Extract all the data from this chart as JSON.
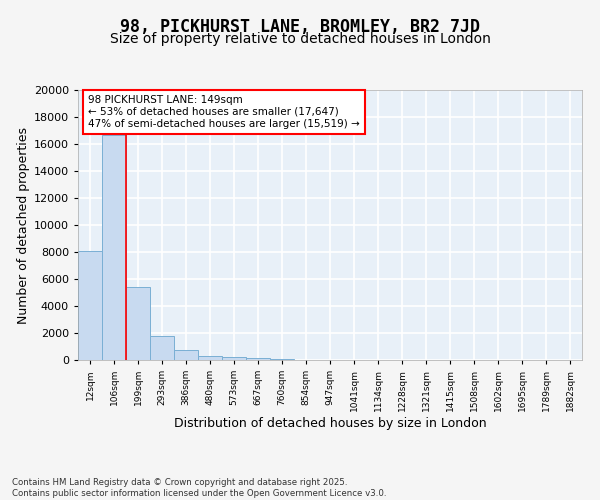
{
  "title": "98, PICKHURST LANE, BROMLEY, BR2 7JD",
  "subtitle": "Size of property relative to detached houses in London",
  "xlabel": "Distribution of detached houses by size in London",
  "ylabel": "Number of detached properties",
  "bins": [
    "12sqm",
    "106sqm",
    "199sqm",
    "293sqm",
    "386sqm",
    "480sqm",
    "573sqm",
    "667sqm",
    "760sqm",
    "854sqm",
    "947sqm",
    "1041sqm",
    "1134sqm",
    "1228sqm",
    "1321sqm",
    "1415sqm",
    "1508sqm",
    "1602sqm",
    "1695sqm",
    "1789sqm",
    "1882sqm"
  ],
  "values": [
    8100,
    16700,
    5400,
    1800,
    750,
    300,
    200,
    150,
    100,
    0,
    0,
    0,
    0,
    0,
    0,
    0,
    0,
    0,
    0,
    0,
    0
  ],
  "bar_color": "#c8daf0",
  "bar_edge_color": "#7aafd4",
  "red_line_x": 1.5,
  "annotation_text": "98 PICKHURST LANE: 149sqm\n← 53% of detached houses are smaller (17,647)\n47% of semi-detached houses are larger (15,519) →",
  "annotation_box_color": "white",
  "annotation_box_edge_color": "red",
  "ylim": [
    0,
    20000
  ],
  "yticks": [
    0,
    2000,
    4000,
    6000,
    8000,
    10000,
    12000,
    14000,
    16000,
    18000,
    20000
  ],
  "plot_bg_color": "#e8f0f8",
  "fig_bg_color": "#f5f5f5",
  "grid_color": "white",
  "footer_text": "Contains HM Land Registry data © Crown copyright and database right 2025.\nContains public sector information licensed under the Open Government Licence v3.0.",
  "red_line_color": "red",
  "title_fontsize": 12,
  "subtitle_fontsize": 10,
  "ylabel_fontsize": 9,
  "xlabel_fontsize": 9
}
